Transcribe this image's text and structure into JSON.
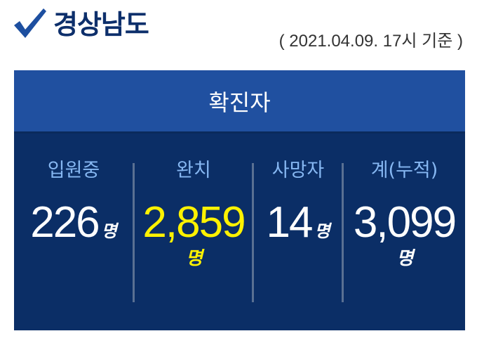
{
  "header": {
    "icon": "check-icon",
    "title": "경상남도",
    "date": "( 2021.04.09. 17시 기준 )"
  },
  "table": {
    "heading": "확진자",
    "columns": [
      {
        "label": "입원중",
        "value": "226",
        "unit": "명"
      },
      {
        "label": "완치",
        "value": "2,859",
        "unit": "명"
      },
      {
        "label": "사망자",
        "value": "14",
        "unit": "명"
      },
      {
        "label": "계(누적)",
        "value": "3,099",
        "unit": "명"
      }
    ]
  },
  "colors": {
    "header_bg": "#2050a0",
    "body_bg": "#0b2e66",
    "label": "#86b7f2",
    "highlight": "#fff200",
    "title": "#0d2f6b"
  }
}
